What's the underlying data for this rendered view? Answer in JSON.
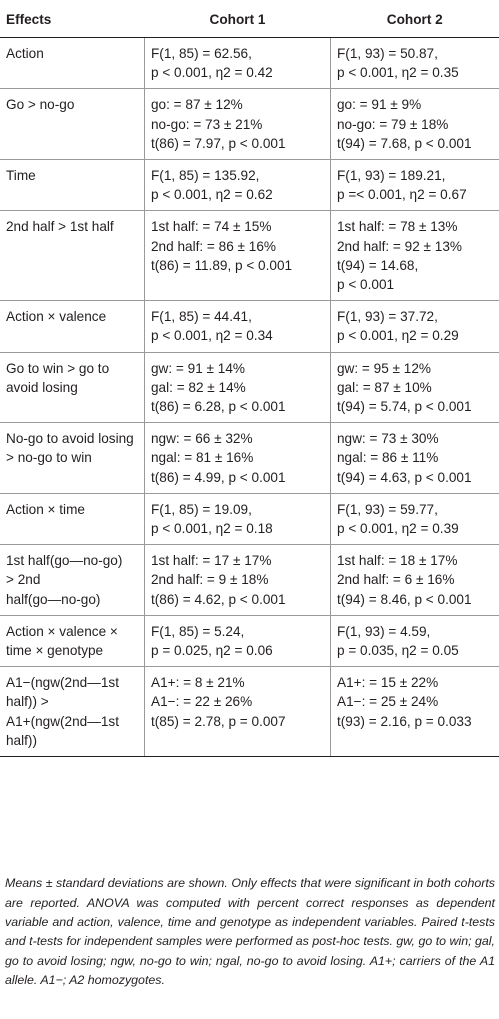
{
  "table": {
    "header": {
      "effects": "Effects",
      "cohort1": "Cohort 1",
      "cohort2": "Cohort 2"
    },
    "rows": [
      {
        "effect": [
          "Action"
        ],
        "c1": [
          "F(1, 85) = 62.56,",
          "p < 0.001, η2 = 0.42"
        ],
        "c2": [
          "F(1, 93) = 50.87,",
          "p < 0.001, η2 = 0.35"
        ]
      },
      {
        "effect": [
          "Go > no-go"
        ],
        "c1": [
          "go: = 87 ± 12%",
          "no-go: = 73 ± 21%",
          "t(86) = 7.97, p < 0.001"
        ],
        "c2": [
          "go: = 91 ± 9%",
          "no-go: = 79 ± 18%",
          "t(94) = 7.68, p < 0.001"
        ]
      },
      {
        "effect": [
          "Time"
        ],
        "c1": [
          "F(1, 85) = 135.92,",
          "p < 0.001, η2 = 0.62"
        ],
        "c2": [
          "F(1, 93) = 189.21,",
          "p =< 0.001, η2 = 0.67"
        ]
      },
      {
        "effect": [
          "2nd half > 1st half"
        ],
        "c1": [
          "1st half: = 74 ± 15%",
          "2nd half: = 86 ± 16%",
          "t(86) = 11.89, p < 0.001"
        ],
        "c2": [
          "1st half: = 78 ± 13%",
          "2nd half: = 92 ± 13%",
          "t(94) = 14.68,",
          "p < 0.001"
        ]
      },
      {
        "effect": [
          "Action × valence"
        ],
        "c1": [
          "F(1, 85) = 44.41,",
          "p < 0.001, η2 = 0.34"
        ],
        "c2": [
          "F(1, 93) = 37.72,",
          "p < 0.001, η2 = 0.29"
        ]
      },
      {
        "effect": [
          "Go to win > go to",
          "avoid losing"
        ],
        "c1": [
          "gw: = 91 ± 14%",
          "gal: = 82 ± 14%",
          "t(86) = 6.28, p < 0.001"
        ],
        "c2": [
          "gw: = 95 ± 12%",
          "gal: = 87 ± 10%",
          "t(94) = 5.74, p < 0.001"
        ]
      },
      {
        "effect": [
          "No-go to avoid losing",
          "> no-go to win"
        ],
        "c1": [
          "ngw: = 66 ± 32%",
          "ngal: = 81 ± 16%",
          "t(86) = 4.99, p < 0.001"
        ],
        "c2": [
          "ngw: = 73 ± 30%",
          "ngal: = 86 ± 11%",
          "t(94) = 4.63, p < 0.001"
        ]
      },
      {
        "effect": [
          "Action × time"
        ],
        "c1": [
          "F(1, 85) = 19.09,",
          "p < 0.001, η2 = 0.18"
        ],
        "c2": [
          "F(1, 93) = 59.77,",
          "p < 0.001, η2 = 0.39"
        ]
      },
      {
        "effect": [
          "1st half(go—no-go)",
          "> 2nd",
          "half(go—no-go)"
        ],
        "c1": [
          "1st half: = 17 ± 17%",
          "2nd half: = 9 ± 18%",
          "t(86) = 4.62, p < 0.001"
        ],
        "c2": [
          "1st half: = 18 ± 17%",
          "2nd half: = 6 ± 16%",
          "t(94) = 8.46, p < 0.001"
        ]
      },
      {
        "effect": [
          "Action × valence ×",
          "time × genotype"
        ],
        "c1": [
          "F(1, 85) = 5.24,",
          "p = 0.025, η2 = 0.06"
        ],
        "c2": [
          "F(1, 93) = 4.59,",
          "p = 0.035, η2 = 0.05"
        ]
      },
      {
        "effect": [
          "A1−(ngw(2nd—1st",
          "half)) >",
          "A1+(ngw(2nd—1st",
          "half))"
        ],
        "c1": [
          "A1+: = 8 ± 21%",
          "A1−: = 22 ± 26%",
          "t(85) = 2.78, p = 0.007"
        ],
        "c2": [
          "A1+: = 15 ± 22%",
          "A1−: = 25 ± 24%",
          "t(93) = 2.16, p = 0.033"
        ]
      }
    ]
  },
  "footnote": "Means ± standard deviations are shown. Only effects that were significant in both cohorts are reported. ANOVA was computed with percent correct responses as dependent variable and action, valence, time and genotype as independent variables. Paired t-tests and t-tests for independent samples were performed as post-hoc tests. gw, go to win; gal, go to avoid losing; ngw, no-go to win; ngal, no-go to avoid losing. A1+; carriers of the A1 allele. A1−; A2 homozygotes."
}
